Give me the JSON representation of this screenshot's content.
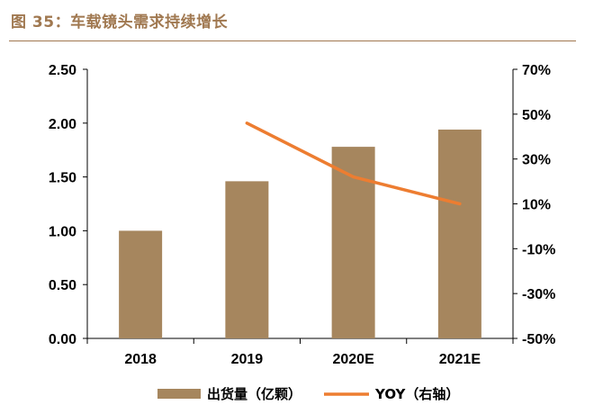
{
  "figure": {
    "title": "图 35：车载镜头需求持续增长"
  },
  "colors": {
    "bar": "#a6865e",
    "line": "#ed7d31",
    "accent": "#a07850",
    "axis": "#000000"
  },
  "chart_data": {
    "type": "bar",
    "categories": [
      "2018",
      "2019",
      "2020E",
      "2021E"
    ],
    "series": [
      {
        "name": "出货量（亿颗）",
        "type": "bar",
        "axis": "left",
        "values": [
          1.0,
          1.46,
          1.78,
          1.94
        ]
      },
      {
        "name": "YOY（右轴）",
        "type": "line",
        "axis": "right",
        "values": [
          null,
          46,
          22,
          10
        ]
      }
    ],
    "ylim_left": [
      0,
      2.5
    ],
    "yticks_left": [
      "0.00",
      "0.50",
      "1.00",
      "1.50",
      "2.00",
      "2.50"
    ],
    "ylim_right": [
      -50,
      70
    ],
    "yticks_right": [
      "-50%",
      "-30%",
      "-10%",
      "10%",
      "30%",
      "50%",
      "70%"
    ],
    "legend": "bottom",
    "grid": false
  }
}
